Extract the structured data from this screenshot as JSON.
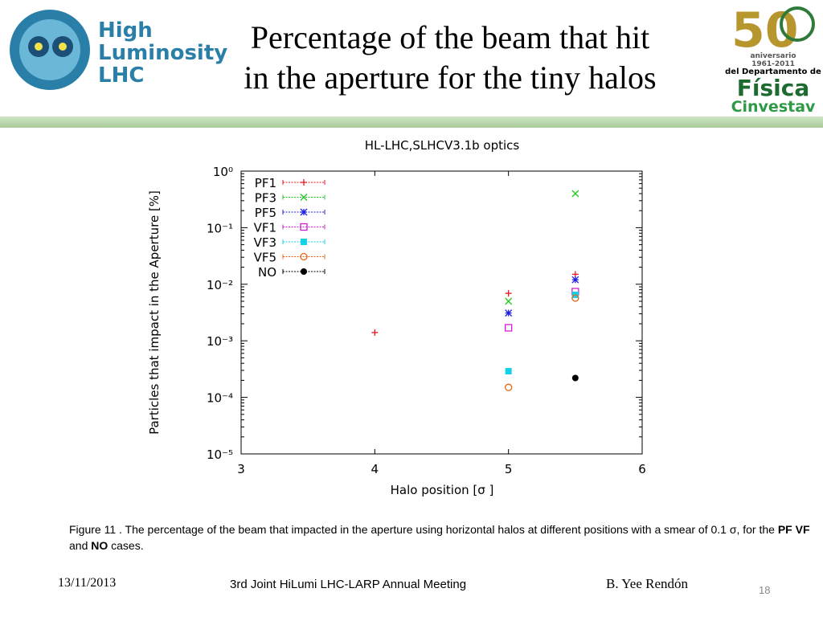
{
  "header": {
    "title_line1": "Percentage of the beam that hit",
    "title_line2": "in the aperture for the tiny halos",
    "left_logo": [
      "High",
      "Luminosity",
      "LHC"
    ],
    "right_logo": [
      "50",
      "aniversario",
      "1961-2011",
      "del Departamento de",
      "Física",
      "Cinvestav"
    ]
  },
  "chart_data": {
    "type": "scatter",
    "title": "HL-LHC,SLHCV3.1b optics",
    "x_label": "Halo position [σ ]",
    "y_label": "Particles that impact in the Aperture [%]",
    "log_y": true,
    "xlim": [
      3,
      6
    ],
    "ylim": [
      1e-05,
      1
    ],
    "xticks": [
      3,
      4,
      5,
      6
    ],
    "yticks": [
      {
        "value": 1,
        "label": "10⁰"
      },
      {
        "value": 0.1,
        "label": "10⁻¹"
      },
      {
        "value": 0.01,
        "label": "10⁻²"
      },
      {
        "value": 0.001,
        "label": "10⁻³"
      },
      {
        "value": 0.0001,
        "label": "10⁻⁴"
      },
      {
        "value": 1e-05,
        "label": "10⁻⁵"
      }
    ],
    "legend": "upper left",
    "x": [
      4,
      5,
      5.5
    ],
    "series": [
      {
        "name": "PF1",
        "color": "#e8141e",
        "marker": "plus",
        "values": [
          0.0014,
          0.0069,
          0.015
        ]
      },
      {
        "name": "PF3",
        "color": "#1ec81e",
        "marker": "cross",
        "values": [
          null,
          0.005,
          0.4
        ]
      },
      {
        "name": "PF5",
        "color": "#1e1ee0",
        "marker": "star",
        "values": [
          null,
          0.0031,
          0.012
        ]
      },
      {
        "name": "VF1",
        "color": "#d21ed2",
        "marker": "open-square",
        "values": [
          null,
          0.0017,
          0.0074
        ]
      },
      {
        "name": "VF3",
        "color": "#14d2e6",
        "marker": "square",
        "values": [
          null,
          0.00029,
          0.0065
        ]
      },
      {
        "name": "VF5",
        "color": "#e86414",
        "marker": "open-circle",
        "values": [
          null,
          0.00015,
          0.0057
        ]
      },
      {
        "name": "NO",
        "color": "#000000",
        "marker": "circle",
        "values": [
          null,
          null,
          0.00022
        ]
      }
    ]
  },
  "caption": [
    "Figure 11 .  The percentage of the beam that impacted  in the aperture using horizontal halos at different positions with a smear of  0.1 σ, for the ",
    "PF  VF",
    " and ",
    "NO",
    " cases."
  ],
  "footer": {
    "date": "13/11/2013",
    "meeting": "3rd Joint HiLumi LHC-LARP Annual Meeting",
    "author": "B. Yee Rendón",
    "page": "18"
  }
}
